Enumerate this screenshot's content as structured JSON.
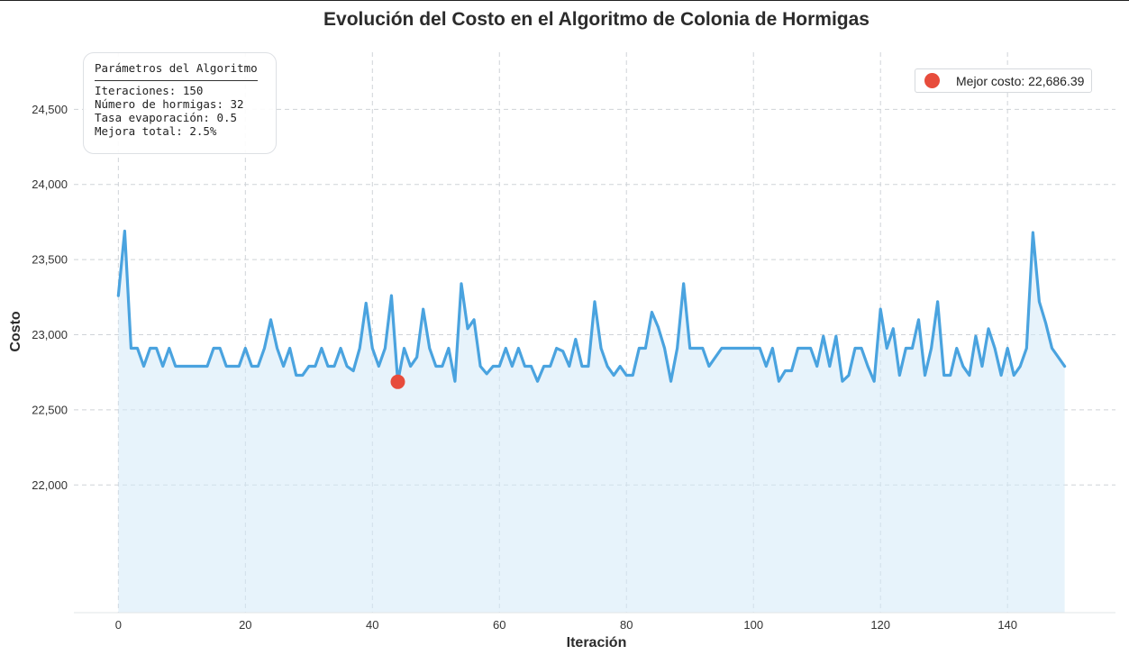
{
  "chart_data": {
    "type": "line",
    "title": "Evolución del Costo en el Algoritmo de Colonia de Hormigas",
    "xlabel": "Iteración",
    "ylabel": "Costo",
    "xlim": [
      -7,
      157
    ],
    "ylim": [
      21150,
      24880
    ],
    "xticks": [
      0,
      20,
      40,
      60,
      80,
      100,
      120,
      140
    ],
    "xtick_labels": [
      "0",
      "20",
      "40",
      "60",
      "80",
      "100",
      "120",
      "140"
    ],
    "yticks": [
      22000,
      22500,
      23000,
      23500,
      24000,
      24500
    ],
    "ytick_labels": [
      "22,000",
      "22,500",
      "23,000",
      "23,500",
      "24,000",
      "24,500"
    ],
    "grid": true,
    "area_fill": true,
    "series": [
      {
        "color": "#4aa3df",
        "values": [
          23260,
          23690,
          22910,
          22910,
          22790,
          22910,
          22910,
          22790,
          22910,
          22790,
          22790,
          22790,
          22790,
          22790,
          22790,
          22910,
          22910,
          22790,
          22790,
          22790,
          22910,
          22790,
          22790,
          22910,
          23100,
          22910,
          22790,
          22910,
          22730,
          22730,
          22790,
          22790,
          22910,
          22790,
          22790,
          22910,
          22790,
          22760,
          22910,
          23210,
          22910,
          22790,
          22910,
          23260,
          22686.39,
          22910,
          22790,
          22850,
          23170,
          22910,
          22790,
          22790,
          22910,
          22690,
          23340,
          23040,
          23100,
          22790,
          22740,
          22790,
          22790,
          22910,
          22790,
          22910,
          22790,
          22790,
          22690,
          22790,
          22790,
          22910,
          22890,
          22790,
          22970,
          22790,
          22790,
          23220,
          22910,
          22790,
          22730,
          22790,
          22730,
          22730,
          22910,
          22910,
          23150,
          23050,
          22910,
          22690,
          22910,
          23340,
          22910,
          22910,
          22910,
          22790,
          22850,
          22910,
          22910,
          22910,
          22910,
          22910,
          22910,
          22910,
          22790,
          22910,
          22690,
          22760,
          22760,
          22910,
          22910,
          22910,
          22790,
          22990,
          22790,
          22990,
          22690,
          22730,
          22910,
          22910,
          22790,
          22690,
          23170,
          22910,
          23040,
          22730,
          22910,
          22910,
          23100,
          22730,
          22910,
          23220,
          22730,
          22730,
          22910,
          22790,
          22730,
          22990,
          22790,
          23040,
          22910,
          22730,
          22910,
          22730,
          22790,
          22910,
          23680,
          23220,
          23080,
          22910,
          22850,
          22790
        ]
      }
    ],
    "best_point": {
      "x": 44,
      "y": 22686.39,
      "color": "#e74c3c"
    },
    "legend": {
      "placement": "top-right",
      "label": "Mejor costo: 22,686.39"
    }
  },
  "params": {
    "title": "Parámetros del Algoritmo",
    "lines": [
      "Iteraciones: 150",
      "Número de hormigas: 32",
      "Tasa evaporación: 0.5",
      "Mejora total: 2.5%"
    ]
  }
}
